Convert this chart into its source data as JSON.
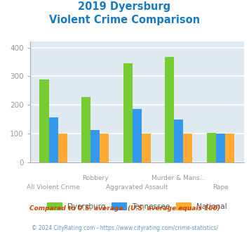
{
  "title_line1": "2019 Dyersburg",
  "title_line2": "Violent Crime Comparison",
  "title_color": "#1a7abf",
  "categories": [
    "All Violent Crime",
    "Robbery",
    "Aggravated Assault",
    "Murder & Mans...",
    "Rape"
  ],
  "dyersburg": [
    290,
    228,
    345,
    368,
    102
  ],
  "tennessee": [
    157,
    113,
    185,
    149,
    100
  ],
  "national": [
    100,
    100,
    100,
    100,
    100
  ],
  "color_dyersburg": "#77cc33",
  "color_tennessee": "#3399ee",
  "color_national": "#ffaa33",
  "ylim": [
    0,
    420
  ],
  "yticks": [
    0,
    100,
    200,
    300,
    400
  ],
  "plot_bg": "#deeaf0",
  "grid_color": "#ffffff",
  "footnote1": "Compared to U.S. average. (U.S. average equals 100)",
  "footnote2": "© 2024 CityRating.com - https://www.cityrating.com/crime-statistics/",
  "footnote1_color": "#cc4400",
  "footnote2_color": "#6699cc",
  "xlabel_color": "#999999",
  "legend_labels": [
    "Dyersburg",
    "Tennessee",
    "National"
  ],
  "bar_width": 0.22
}
